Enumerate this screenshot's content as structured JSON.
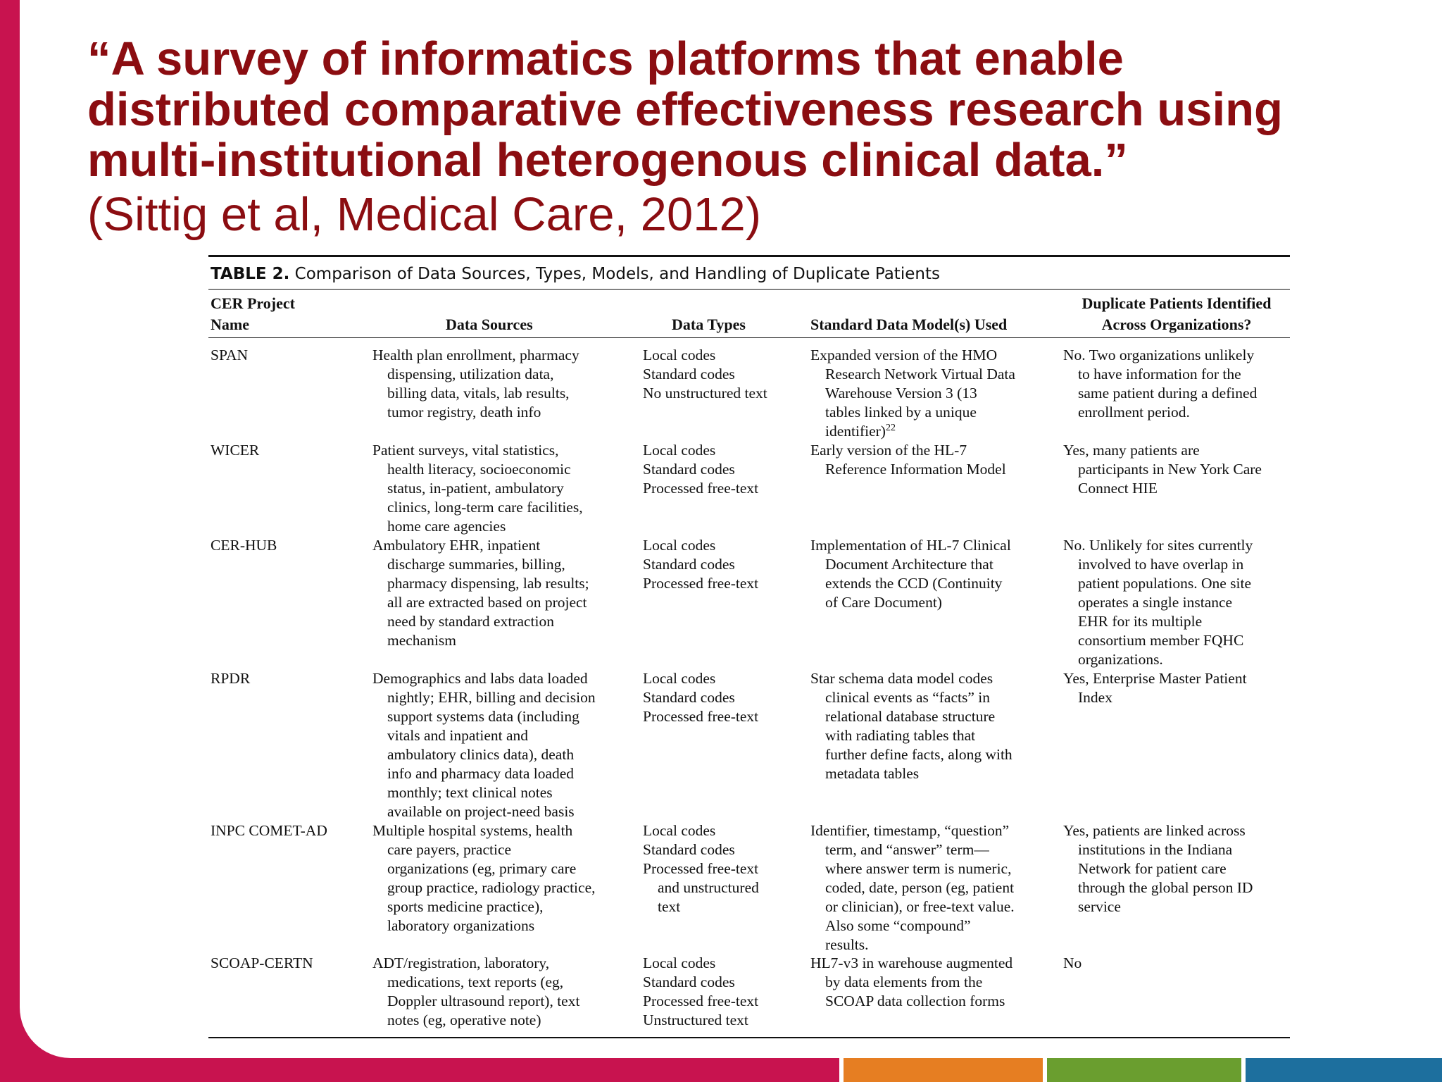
{
  "slide": {
    "title_lines": [
      "“A survey of informatics platforms that enable",
      "distributed comparative effectiveness research using",
      "multi-institutional heterogenous clinical data.”"
    ],
    "citation": "(Sittig et al, Medical Care, 2012)"
  },
  "table": {
    "caption_label": "TABLE 2.",
    "caption_text": "Comparison of Data Sources, Types, Models, and Handling of Duplicate Patients",
    "headers": {
      "project": [
        "CER Project",
        "Name"
      ],
      "sources": "Data Sources",
      "types": "Data Types",
      "model": "Standard Data Model(s) Used",
      "duplicates": [
        "Duplicate Patients Identified",
        "Across Organizations?"
      ]
    },
    "rows": [
      {
        "name": "SPAN",
        "sources": [
          "Health plan enrollment, pharmacy",
          "dispensing, utilization data,",
          "billing data, vitals, lab results,",
          "tumor registry, death info"
        ],
        "types": [
          "Local codes",
          "Standard codes",
          "No unstructured text"
        ],
        "model": [
          "Expanded version of the HMO",
          "Research Network Virtual Data",
          "Warehouse Version 3 (13",
          "tables linked by a unique",
          "identifier)"
        ],
        "model_sup": "22",
        "duplicates": [
          "No. Two organizations unlikely",
          "to have information for the",
          "same patient during a defined",
          "enrollment period."
        ]
      },
      {
        "name": "WICER",
        "sources": [
          "Patient surveys, vital statistics,",
          "health literacy, socioeconomic",
          "status, in-patient, ambulatory",
          "clinics, long-term care facilities,",
          "home care agencies"
        ],
        "types": [
          "Local codes",
          "Standard codes",
          "Processed free-text"
        ],
        "model": [
          "Early version of the HL-7",
          "Reference Information Model"
        ],
        "duplicates": [
          "Yes, many patients are",
          "participants in New York Care",
          "Connect HIE"
        ]
      },
      {
        "name": "CER-HUB",
        "sources": [
          "Ambulatory EHR, inpatient",
          "discharge summaries, billing,",
          "pharmacy dispensing, lab results;",
          "all are extracted based on project",
          "need by standard extraction",
          "mechanism"
        ],
        "types": [
          "Local codes",
          "Standard codes",
          "Processed free-text"
        ],
        "model": [
          "Implementation of HL-7 Clinical",
          "Document Architecture that",
          "extends the CCD (Continuity",
          "of Care Document)"
        ],
        "duplicates": [
          "No. Unlikely for sites currently",
          "involved to have overlap in",
          "patient populations. One site",
          "operates a single instance",
          "EHR for its multiple",
          "consortium member FQHC",
          "organizations."
        ]
      },
      {
        "name": "RPDR",
        "sources": [
          "Demographics and labs data loaded",
          "nightly; EHR, billing and decision",
          "support systems data (including",
          "vitals and inpatient and",
          "ambulatory clinics data), death",
          "info and pharmacy data loaded",
          "monthly; text clinical notes",
          "available on project-need basis"
        ],
        "types": [
          "Local codes",
          "Standard codes",
          "Processed free-text"
        ],
        "model": [
          "Star schema data model codes",
          "clinical events as “facts” in",
          "relational database structure",
          "with radiating tables that",
          "further define facts, along with",
          "metadata tables"
        ],
        "duplicates": [
          "Yes, Enterprise Master Patient",
          "Index"
        ]
      },
      {
        "name": "INPC COMET-AD",
        "sources": [
          "Multiple hospital systems, health",
          "care payers, practice",
          "organizations (eg, primary care",
          "group practice, radiology practice,",
          "sports medicine practice),",
          "laboratory organizations"
        ],
        "types": [
          "Local codes",
          "Standard codes",
          "Processed free-text",
          "and unstructured",
          "text"
        ],
        "model": [
          "Identifier, timestamp, “question”",
          "term, and “answer” term—",
          "where answer term is numeric,",
          "coded, date, person (eg, patient",
          "or clinician), or free-text value.",
          "Also some “compound”",
          "results."
        ],
        "duplicates": [
          "Yes, patients are linked across",
          "institutions in the Indiana",
          "Network for patient care",
          "through the global person ID",
          "service"
        ]
      },
      {
        "name": "SCOAP-CERTN",
        "sources": [
          "ADT/registration, laboratory,",
          "medications, text reports (eg,",
          "Doppler ultrasound report), text",
          "notes (eg, operative note)"
        ],
        "types": [
          "Local codes",
          "Standard codes",
          "Processed free-text",
          "Unstructured text"
        ],
        "model": [
          "HL7-v3 in warehouse augmented",
          "by data elements from the",
          "SCOAP data collection forms"
        ],
        "duplicates": [
          "No"
        ]
      }
    ]
  },
  "colors": {
    "title": "#8b0d11",
    "brand_red": "#c8134f",
    "bar_orange": "#e67e22",
    "bar_green": "#6a9e2f",
    "bar_blue": "#1d6f9e"
  }
}
